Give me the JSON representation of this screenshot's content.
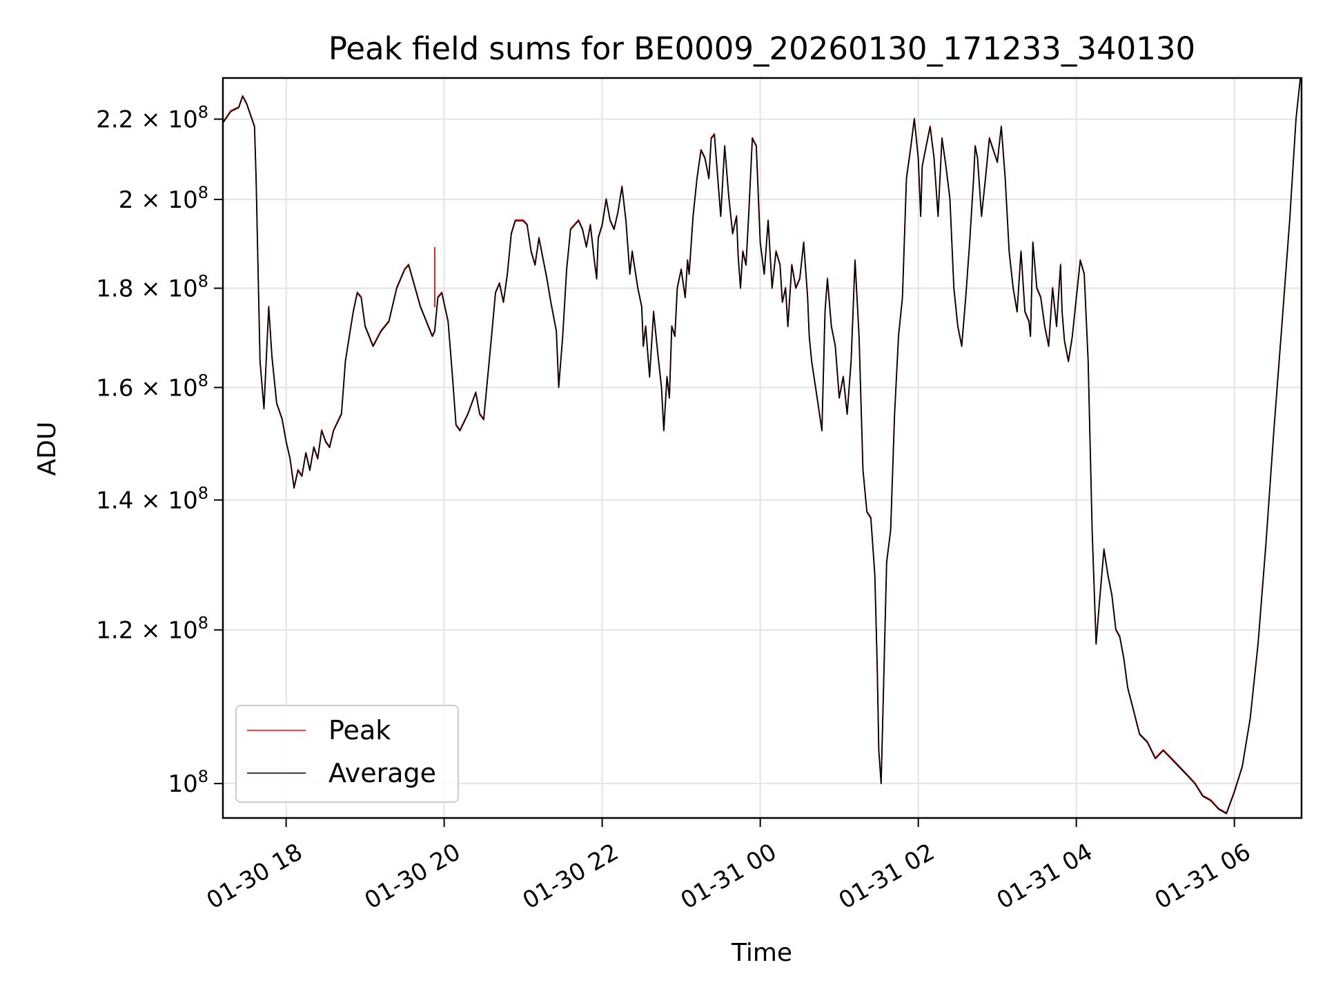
{
  "chart_data": {
    "type": "line",
    "title": "Peak field sums for BE0009_20260130_171233_340130",
    "xlabel": "Time",
    "ylabel": "ADU",
    "yscale": "log",
    "xlim_hours": [
      17.2,
      30.85
    ],
    "ylim": [
      96000000,
      231000000
    ],
    "grid": true,
    "x_unit": "hours since 2026-01-30 00:00",
    "x_ticks": [
      {
        "value": 18,
        "label": "01-30 18"
      },
      {
        "value": 20,
        "label": "01-30 20"
      },
      {
        "value": 22,
        "label": "01-30 22"
      },
      {
        "value": 24,
        "label": "01-31 00"
      },
      {
        "value": 26,
        "label": "01-31 02"
      },
      {
        "value": 28,
        "label": "01-31 04"
      },
      {
        "value": 30,
        "label": "01-31 06"
      }
    ],
    "y_ticks": [
      {
        "value": 100000000,
        "mantissa": "",
        "exp": "8"
      },
      {
        "value": 120000000,
        "mantissa": "1.2",
        "exp": "8"
      },
      {
        "value": 140000000,
        "mantissa": "1.4",
        "exp": "8"
      },
      {
        "value": 160000000,
        "mantissa": "1.6",
        "exp": "8"
      },
      {
        "value": 180000000,
        "mantissa": "1.8",
        "exp": "8"
      },
      {
        "value": 200000000,
        "mantissa": "2",
        "exp": "8"
      },
      {
        "value": 220000000,
        "mantissa": "2.2",
        "exp": "8"
      }
    ],
    "legend": {
      "position": "lower-left",
      "entries": [
        {
          "name": "Peak",
          "color": "#ff0000"
        },
        {
          "name": "Average",
          "color": "#000000"
        }
      ]
    },
    "series": [
      {
        "name": "Peak",
        "color": "#ff0000",
        "spikes": [
          {
            "x": 19.88,
            "from": 176000000,
            "to": 189000000
          }
        ]
      },
      {
        "name": "Average",
        "color": "#000000",
        "points": [
          [
            17.2,
            219
          ],
          [
            17.3,
            222
          ],
          [
            17.4,
            223
          ],
          [
            17.45,
            226
          ],
          [
            17.5,
            224
          ],
          [
            17.6,
            218
          ],
          [
            17.62,
            205
          ],
          [
            17.67,
            165
          ],
          [
            17.72,
            156
          ],
          [
            17.78,
            176
          ],
          [
            17.82,
            166
          ],
          [
            17.88,
            157
          ],
          [
            17.95,
            154
          ],
          [
            18.0,
            150
          ],
          [
            18.05,
            147
          ],
          [
            18.1,
            142
          ],
          [
            18.15,
            145
          ],
          [
            18.2,
            144
          ],
          [
            18.25,
            148
          ],
          [
            18.3,
            145
          ],
          [
            18.35,
            149
          ],
          [
            18.4,
            147
          ],
          [
            18.45,
            152
          ],
          [
            18.5,
            150
          ],
          [
            18.55,
            149
          ],
          [
            18.6,
            152
          ],
          [
            18.7,
            155
          ],
          [
            18.75,
            165
          ],
          [
            18.8,
            170
          ],
          [
            18.85,
            175
          ],
          [
            18.9,
            179
          ],
          [
            18.95,
            178
          ],
          [
            19.0,
            172
          ],
          [
            19.1,
            168
          ],
          [
            19.2,
            171
          ],
          [
            19.3,
            173
          ],
          [
            19.4,
            180
          ],
          [
            19.5,
            184
          ],
          [
            19.55,
            185
          ],
          [
            19.6,
            182
          ],
          [
            19.7,
            176
          ],
          [
            19.75,
            174
          ],
          [
            19.85,
            170
          ],
          [
            19.88,
            171
          ],
          [
            19.92,
            178
          ],
          [
            19.97,
            179
          ],
          [
            20.05,
            173
          ],
          [
            20.1,
            163
          ],
          [
            20.15,
            153
          ],
          [
            20.2,
            152
          ],
          [
            20.3,
            155
          ],
          [
            20.35,
            157
          ],
          [
            20.4,
            159
          ],
          [
            20.45,
            155
          ],
          [
            20.5,
            154
          ],
          [
            20.6,
            170
          ],
          [
            20.65,
            179
          ],
          [
            20.7,
            181
          ],
          [
            20.75,
            177
          ],
          [
            20.8,
            183
          ],
          [
            20.85,
            192
          ],
          [
            20.9,
            195
          ],
          [
            21.0,
            195
          ],
          [
            21.05,
            194
          ],
          [
            21.1,
            188
          ],
          [
            21.15,
            185
          ],
          [
            21.2,
            191
          ],
          [
            21.3,
            182
          ],
          [
            21.35,
            177
          ],
          [
            21.42,
            171
          ],
          [
            21.45,
            160
          ],
          [
            21.5,
            170
          ],
          [
            21.55,
            184
          ],
          [
            21.6,
            193
          ],
          [
            21.7,
            195
          ],
          [
            21.75,
            193
          ],
          [
            21.8,
            189
          ],
          [
            21.85,
            194
          ],
          [
            21.9,
            186
          ],
          [
            21.93,
            182
          ],
          [
            21.95,
            191
          ],
          [
            22.0,
            194
          ],
          [
            22.05,
            200
          ],
          [
            22.1,
            195
          ],
          [
            22.15,
            193
          ],
          [
            22.2,
            197
          ],
          [
            22.25,
            203
          ],
          [
            22.3,
            195
          ],
          [
            22.32,
            190
          ],
          [
            22.35,
            183
          ],
          [
            22.38,
            188
          ],
          [
            22.45,
            180
          ],
          [
            22.5,
            176
          ],
          [
            22.52,
            168
          ],
          [
            22.55,
            172
          ],
          [
            22.6,
            162
          ],
          [
            22.65,
            175
          ],
          [
            22.7,
            167
          ],
          [
            22.75,
            160
          ],
          [
            22.78,
            152
          ],
          [
            22.82,
            162
          ],
          [
            22.85,
            158
          ],
          [
            22.88,
            172
          ],
          [
            22.92,
            170
          ],
          [
            22.95,
            180
          ],
          [
            23.0,
            184
          ],
          [
            23.05,
            178
          ],
          [
            23.08,
            186
          ],
          [
            23.1,
            183
          ],
          [
            23.15,
            196
          ],
          [
            23.2,
            205
          ],
          [
            23.25,
            212
          ],
          [
            23.3,
            210
          ],
          [
            23.35,
            205
          ],
          [
            23.38,
            215
          ],
          [
            23.42,
            216
          ],
          [
            23.45,
            208
          ],
          [
            23.5,
            196
          ],
          [
            23.55,
            213
          ],
          [
            23.6,
            201
          ],
          [
            23.65,
            192
          ],
          [
            23.7,
            196
          ],
          [
            23.72,
            187
          ],
          [
            23.75,
            180
          ],
          [
            23.78,
            188
          ],
          [
            23.82,
            185
          ],
          [
            23.85,
            195
          ],
          [
            23.9,
            215
          ],
          [
            23.95,
            213
          ],
          [
            24.0,
            190
          ],
          [
            24.05,
            183
          ],
          [
            24.1,
            195
          ],
          [
            24.15,
            180
          ],
          [
            24.2,
            188
          ],
          [
            24.25,
            185
          ],
          [
            24.28,
            177
          ],
          [
            24.32,
            180
          ],
          [
            24.35,
            172
          ],
          [
            24.4,
            185
          ],
          [
            24.45,
            180
          ],
          [
            24.5,
            182
          ],
          [
            24.55,
            190
          ],
          [
            24.6,
            178
          ],
          [
            24.62,
            170
          ],
          [
            24.65,
            165
          ],
          [
            24.7,
            160
          ],
          [
            24.75,
            155
          ],
          [
            24.78,
            152
          ],
          [
            24.82,
            175
          ],
          [
            24.85,
            182
          ],
          [
            24.9,
            172
          ],
          [
            24.95,
            168
          ],
          [
            25.0,
            158
          ],
          [
            25.05,
            162
          ],
          [
            25.1,
            155
          ],
          [
            25.15,
            165
          ],
          [
            25.2,
            186
          ],
          [
            25.25,
            170
          ],
          [
            25.3,
            145
          ],
          [
            25.35,
            138
          ],
          [
            25.4,
            137
          ],
          [
            25.45,
            128
          ],
          [
            25.48,
            115
          ],
          [
            25.5,
            104
          ],
          [
            25.53,
            100
          ],
          [
            25.56,
            112
          ],
          [
            25.6,
            130
          ],
          [
            25.65,
            135
          ],
          [
            25.7,
            155
          ],
          [
            25.75,
            170
          ],
          [
            25.8,
            178
          ],
          [
            25.85,
            205
          ],
          [
            25.9,
            212
          ],
          [
            25.95,
            220
          ],
          [
            26.0,
            210
          ],
          [
            26.03,
            196
          ],
          [
            26.05,
            208
          ],
          [
            26.1,
            213
          ],
          [
            26.15,
            218
          ],
          [
            26.2,
            210
          ],
          [
            26.25,
            196
          ],
          [
            26.3,
            215
          ],
          [
            26.35,
            208
          ],
          [
            26.4,
            200
          ],
          [
            26.45,
            180
          ],
          [
            26.5,
            172
          ],
          [
            26.55,
            168
          ],
          [
            26.6,
            178
          ],
          [
            26.65,
            190
          ],
          [
            26.7,
            205
          ],
          [
            26.72,
            213
          ],
          [
            26.75,
            210
          ],
          [
            26.8,
            196
          ],
          [
            26.85,
            205
          ],
          [
            26.9,
            215
          ],
          [
            26.95,
            212
          ],
          [
            27.0,
            209
          ],
          [
            27.05,
            218
          ],
          [
            27.1,
            205
          ],
          [
            27.15,
            188
          ],
          [
            27.2,
            180
          ],
          [
            27.25,
            175
          ],
          [
            27.3,
            188
          ],
          [
            27.35,
            175
          ],
          [
            27.4,
            173
          ],
          [
            27.42,
            170
          ],
          [
            27.45,
            190
          ],
          [
            27.5,
            180
          ],
          [
            27.55,
            178
          ],
          [
            27.6,
            172
          ],
          [
            27.65,
            168
          ],
          [
            27.7,
            180
          ],
          [
            27.75,
            172
          ],
          [
            27.8,
            185
          ],
          [
            27.82,
            175
          ],
          [
            27.85,
            169
          ],
          [
            27.9,
            165
          ],
          [
            27.95,
            170
          ],
          [
            28.0,
            178
          ],
          [
            28.05,
            186
          ],
          [
            28.1,
            183
          ],
          [
            28.15,
            165
          ],
          [
            28.2,
            135
          ],
          [
            28.25,
            118
          ],
          [
            28.3,
            125
          ],
          [
            28.35,
            132
          ],
          [
            28.4,
            128
          ],
          [
            28.45,
            125
          ],
          [
            28.5,
            120
          ],
          [
            28.55,
            119
          ],
          [
            28.6,
            116
          ],
          [
            28.65,
            112
          ],
          [
            28.7,
            110
          ],
          [
            28.75,
            108
          ],
          [
            28.8,
            106
          ],
          [
            28.9,
            105
          ],
          [
            29.0,
            103
          ],
          [
            29.1,
            104
          ],
          [
            29.2,
            103
          ],
          [
            29.3,
            102
          ],
          [
            29.4,
            101
          ],
          [
            29.5,
            100
          ],
          [
            29.6,
            98.5
          ],
          [
            29.7,
            98
          ],
          [
            29.8,
            97
          ],
          [
            29.9,
            96.5
          ],
          [
            30.0,
            99
          ],
          [
            30.1,
            102
          ],
          [
            30.2,
            108
          ],
          [
            30.3,
            118
          ],
          [
            30.4,
            133
          ],
          [
            30.5,
            152
          ],
          [
            30.6,
            172
          ],
          [
            30.7,
            195
          ],
          [
            30.78,
            220
          ],
          [
            30.84,
            232
          ]
        ]
      }
    ]
  }
}
